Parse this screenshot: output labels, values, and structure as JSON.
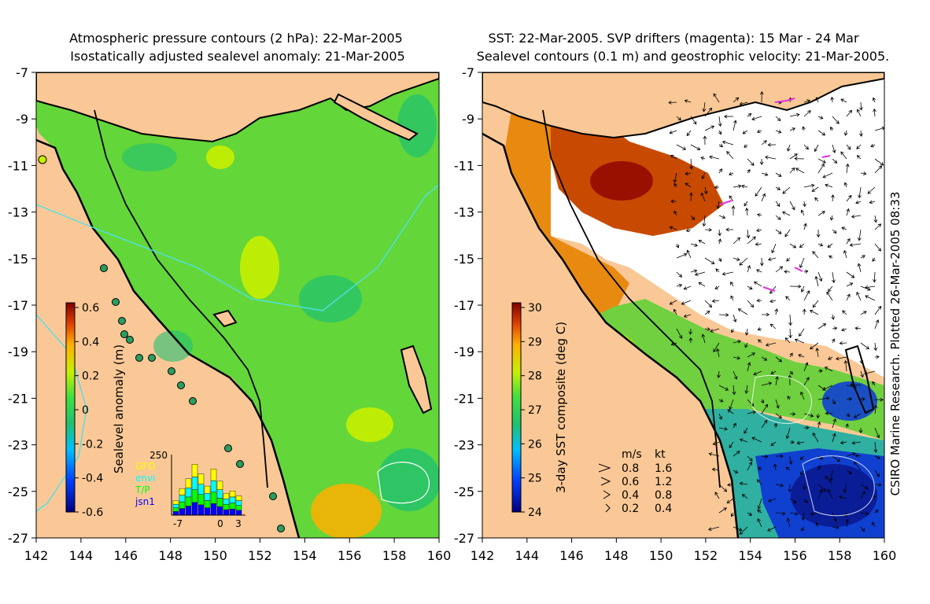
{
  "left_panel": {
    "title_line1": "Atmospheric pressure contours (2 hPa): 22-Mar-2005",
    "title_line2": "Isostatically adjusted sealevel anomaly: 21-Mar-2005",
    "y_ticks": [
      "-7",
      "-9",
      "-11",
      "-13",
      "-15",
      "-17",
      "-19",
      "-21",
      "-23",
      "-25",
      "-27"
    ],
    "x_ticks": [
      "142",
      "144",
      "146",
      "148",
      "150",
      "152",
      "154",
      "156",
      "158",
      "160"
    ],
    "colorbar": {
      "label": "Sealevel anomaly (m)",
      "ticks": [
        "0.6",
        "0.4",
        "0.2",
        "0",
        "-0.2",
        "-0.4",
        "-0.6"
      ],
      "range": [
        -0.6,
        0.6
      ]
    },
    "inset": {
      "y_tick": "250",
      "x_ticks": [
        "-7",
        "0",
        "3"
      ],
      "legend": [
        {
          "label": "GFO",
          "color": "#ffff00"
        },
        {
          "label": "envi",
          "color": "#00ffff"
        },
        {
          "label": "T/P",
          "color": "#00ff00"
        },
        {
          "label": "jsn1",
          "color": "#0000ff"
        }
      ],
      "bars": [
        60,
        110,
        150,
        210,
        170,
        120,
        190,
        140,
        90,
        100,
        80
      ]
    }
  },
  "right_panel": {
    "title_line1": "SST: 22-Mar-2005. SVP drifters (magenta): 15 Mar - 24 Mar",
    "title_line2": "Sealevel contours (0.1 m) and geostrophic velocity: 21-Mar-2005.",
    "y_ticks": [
      "-7",
      "-9",
      "-11",
      "-13",
      "-15",
      "-17",
      "-19",
      "-21",
      "-23",
      "-25",
      "-27"
    ],
    "x_ticks": [
      "142",
      "144",
      "146",
      "148",
      "150",
      "152",
      "154",
      "156",
      "158",
      "160"
    ],
    "colorbar": {
      "label": "3-day SST composite (deg C)",
      "ticks": [
        "30",
        "29",
        "28",
        "27",
        "26",
        "25",
        "24"
      ],
      "range": [
        24,
        30
      ]
    },
    "velocity_key": {
      "header_ms": "m/s",
      "header_kt": "kt",
      "rows": [
        {
          "ms": "0.8",
          "kt": "1.6"
        },
        {
          "ms": "0.6",
          "kt": "1.2"
        },
        {
          "ms": "0.4",
          "kt": "0.8"
        },
        {
          "ms": "0.2",
          "kt": "0.4"
        }
      ]
    },
    "side_text": "CSIRO Marine Research. Plotted 26-Mar-2005 08:33"
  },
  "colors": {
    "land": "#fac896",
    "ocean_anomaly": "#63d63a",
    "cloud": "#ffffff",
    "coastline": "#000000"
  }
}
